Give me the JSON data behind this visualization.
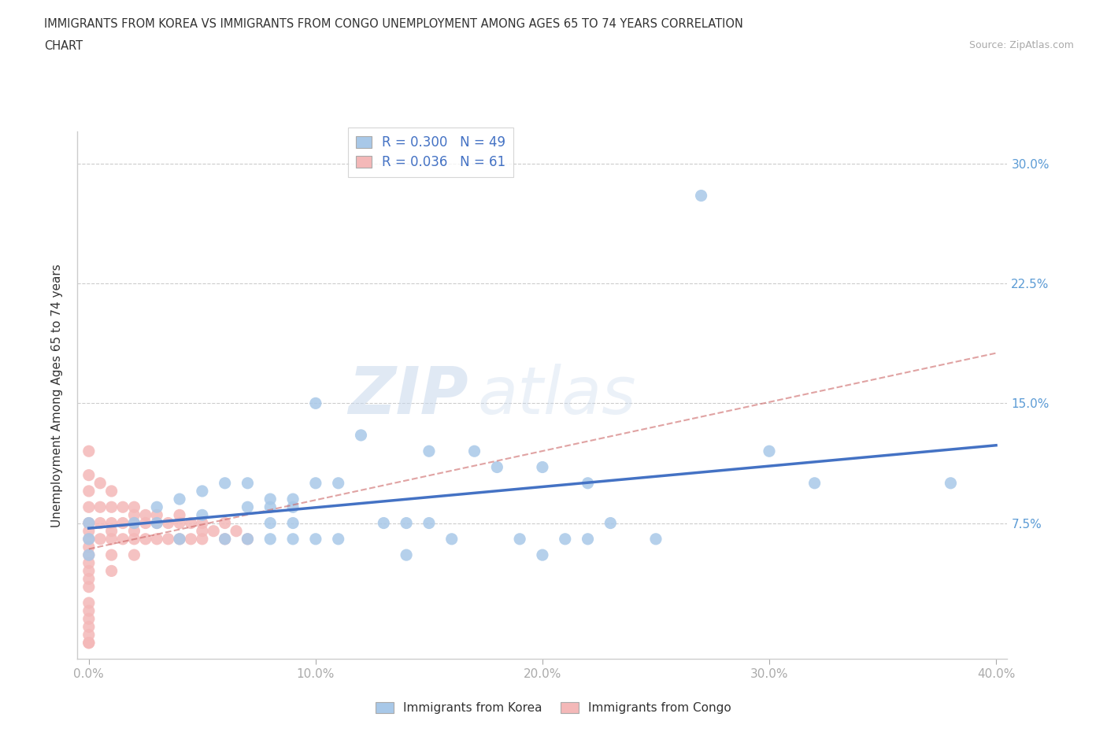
{
  "title_line1": "IMMIGRANTS FROM KOREA VS IMMIGRANTS FROM CONGO UNEMPLOYMENT AMONG AGES 65 TO 74 YEARS CORRELATION",
  "title_line2": "CHART",
  "source": "Source: ZipAtlas.com",
  "ylabel": "Unemployment Among Ages 65 to 74 years",
  "xlim": [
    -0.005,
    0.405
  ],
  "ylim": [
    -0.01,
    0.32
  ],
  "xticks": [
    0.0,
    0.1,
    0.2,
    0.3,
    0.4
  ],
  "xticklabels": [
    "0.0%",
    "10.0%",
    "20.0%",
    "30.0%",
    "40.0%"
  ],
  "yticks": [
    0.075,
    0.15,
    0.225,
    0.3
  ],
  "yticklabels": [
    "7.5%",
    "15.0%",
    "22.5%",
    "30.0%"
  ],
  "korea_R": 0.3,
  "korea_N": 49,
  "congo_R": 0.036,
  "congo_N": 61,
  "korea_color": "#a8c8e8",
  "congo_color": "#f4b8b8",
  "korea_line_color": "#4472c4",
  "congo_line_color": "#cc6666",
  "watermark_zip": "ZIP",
  "watermark_atlas": "atlas",
  "legend_korea": "Immigrants from Korea",
  "legend_congo": "Immigrants from Congo",
  "korea_scatter_x": [
    0.0,
    0.0,
    0.0,
    0.02,
    0.03,
    0.03,
    0.04,
    0.04,
    0.05,
    0.05,
    0.06,
    0.06,
    0.07,
    0.07,
    0.07,
    0.08,
    0.08,
    0.08,
    0.08,
    0.09,
    0.09,
    0.09,
    0.09,
    0.1,
    0.1,
    0.1,
    0.11,
    0.11,
    0.12,
    0.13,
    0.14,
    0.14,
    0.15,
    0.15,
    0.16,
    0.17,
    0.18,
    0.19,
    0.2,
    0.2,
    0.21,
    0.22,
    0.22,
    0.23,
    0.25,
    0.27,
    0.3,
    0.32,
    0.38
  ],
  "korea_scatter_y": [
    0.075,
    0.065,
    0.055,
    0.075,
    0.085,
    0.075,
    0.09,
    0.065,
    0.095,
    0.08,
    0.1,
    0.065,
    0.1,
    0.085,
    0.065,
    0.09,
    0.085,
    0.075,
    0.065,
    0.09,
    0.085,
    0.075,
    0.065,
    0.15,
    0.1,
    0.065,
    0.1,
    0.065,
    0.13,
    0.075,
    0.075,
    0.055,
    0.12,
    0.075,
    0.065,
    0.12,
    0.11,
    0.065,
    0.11,
    0.055,
    0.065,
    0.1,
    0.065,
    0.075,
    0.065,
    0.28,
    0.12,
    0.1,
    0.1
  ],
  "congo_scatter_x": [
    0.0,
    0.0,
    0.0,
    0.0,
    0.0,
    0.0,
    0.0,
    0.0,
    0.0,
    0.0,
    0.0,
    0.0,
    0.0,
    0.0,
    0.0,
    0.0,
    0.0,
    0.0,
    0.0,
    0.0,
    0.005,
    0.005,
    0.005,
    0.005,
    0.01,
    0.01,
    0.01,
    0.01,
    0.01,
    0.01,
    0.01,
    0.015,
    0.015,
    0.015,
    0.02,
    0.02,
    0.02,
    0.02,
    0.02,
    0.02,
    0.025,
    0.025,
    0.025,
    0.03,
    0.03,
    0.03,
    0.035,
    0.035,
    0.04,
    0.04,
    0.04,
    0.045,
    0.045,
    0.05,
    0.05,
    0.05,
    0.055,
    0.06,
    0.06,
    0.065,
    0.07
  ],
  "congo_scatter_y": [
    0.12,
    0.105,
    0.095,
    0.085,
    0.075,
    0.07,
    0.065,
    0.06,
    0.055,
    0.05,
    0.045,
    0.04,
    0.035,
    0.025,
    0.02,
    0.015,
    0.01,
    0.005,
    0.0,
    0.0,
    0.1,
    0.085,
    0.075,
    0.065,
    0.095,
    0.085,
    0.075,
    0.07,
    0.065,
    0.055,
    0.045,
    0.085,
    0.075,
    0.065,
    0.085,
    0.08,
    0.075,
    0.07,
    0.065,
    0.055,
    0.08,
    0.075,
    0.065,
    0.08,
    0.075,
    0.065,
    0.075,
    0.065,
    0.08,
    0.075,
    0.065,
    0.075,
    0.065,
    0.075,
    0.07,
    0.065,
    0.07,
    0.075,
    0.065,
    0.07,
    0.065
  ]
}
